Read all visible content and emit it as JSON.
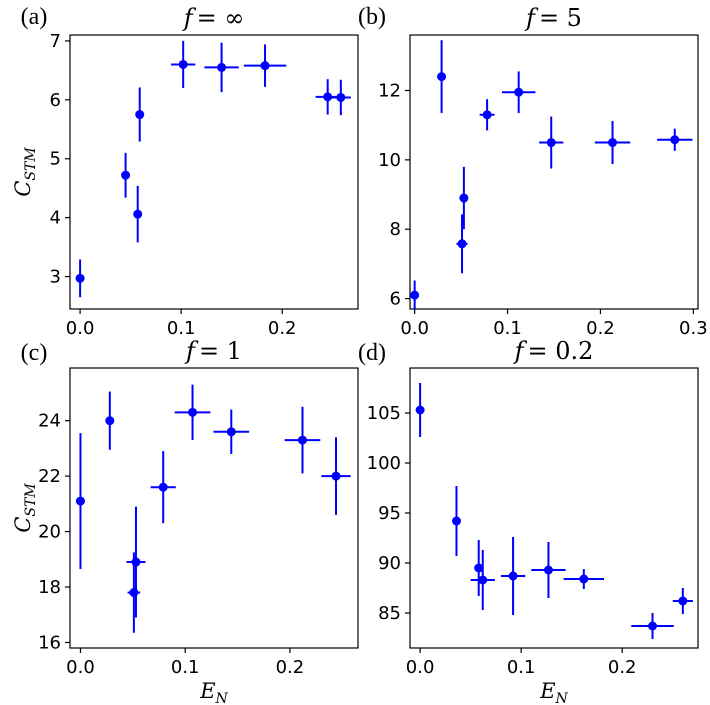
{
  "colors": {
    "marker": "#0000ff",
    "axis": "#000000",
    "background": "#ffffff"
  },
  "chart_data": [
    {
      "type": "scatter",
      "panel_label": "(a)",
      "title_prefix": "f",
      "title_value": "= ∞",
      "ylabel": "C",
      "ylabel_sub": "STM",
      "xlabel": "",
      "xlabel_sub": "",
      "xlim": [
        -0.01,
        0.275
      ],
      "ylim": [
        2.45,
        7.1
      ],
      "xticks": [
        0.0,
        0.1,
        0.2
      ],
      "xtick_labels": [
        "0.0",
        "0.1",
        "0.2"
      ],
      "yticks": [
        3,
        4,
        5,
        6,
        7
      ],
      "ytick_labels": [
        "3",
        "4",
        "5",
        "6",
        "7"
      ],
      "points": [
        {
          "x": 0.0,
          "y": 2.97,
          "xerr": 0.0,
          "yerr": 0.32
        },
        {
          "x": 0.045,
          "y": 4.72,
          "xerr": 0.003,
          "yerr": 0.38
        },
        {
          "x": 0.057,
          "y": 4.06,
          "xerr": 0.003,
          "yerr": 0.48
        },
        {
          "x": 0.059,
          "y": 5.75,
          "xerr": 0.003,
          "yerr": 0.46
        },
        {
          "x": 0.102,
          "y": 6.6,
          "xerr": 0.012,
          "yerr": 0.4
        },
        {
          "x": 0.14,
          "y": 6.55,
          "xerr": 0.017,
          "yerr": 0.42
        },
        {
          "x": 0.183,
          "y": 6.58,
          "xerr": 0.021,
          "yerr": 0.36
        },
        {
          "x": 0.245,
          "y": 6.05,
          "xerr": 0.012,
          "yerr": 0.3
        },
        {
          "x": 0.258,
          "y": 6.04,
          "xerr": 0.01,
          "yerr": 0.3
        }
      ]
    },
    {
      "type": "scatter",
      "panel_label": "(b)",
      "title_prefix": "f",
      "title_value": "= 5",
      "ylabel": "",
      "ylabel_sub": "",
      "xlabel": "",
      "xlabel_sub": "",
      "xlim": [
        -0.005,
        0.305
      ],
      "ylim": [
        5.7,
        13.6
      ],
      "xticks": [
        0.0,
        0.1,
        0.2,
        0.3
      ],
      "xtick_labels": [
        "0.0",
        "0.1",
        "0.2",
        "0.3"
      ],
      "yticks": [
        6,
        8,
        10,
        12
      ],
      "ytick_labels": [
        "6",
        "8",
        "10",
        "12"
      ],
      "points": [
        {
          "x": 0.0,
          "y": 6.1,
          "xerr": 0.0,
          "yerr": 0.42
        },
        {
          "x": 0.029,
          "y": 12.4,
          "xerr": 0.0,
          "yerr": 1.05
        },
        {
          "x": 0.051,
          "y": 7.58,
          "xerr": 0.006,
          "yerr": 0.85
        },
        {
          "x": 0.053,
          "y": 8.9,
          "xerr": 0.004,
          "yerr": 0.9
        },
        {
          "x": 0.078,
          "y": 11.3,
          "xerr": 0.008,
          "yerr": 0.45
        },
        {
          "x": 0.112,
          "y": 11.95,
          "xerr": 0.018,
          "yerr": 0.6
        },
        {
          "x": 0.147,
          "y": 10.5,
          "xerr": 0.013,
          "yerr": 0.75
        },
        {
          "x": 0.213,
          "y": 10.5,
          "xerr": 0.019,
          "yerr": 0.62
        },
        {
          "x": 0.28,
          "y": 10.58,
          "xerr": 0.019,
          "yerr": 0.32
        }
      ]
    },
    {
      "type": "scatter",
      "panel_label": "(c)",
      "title_prefix": "f",
      "title_value": "= 1",
      "ylabel": "C",
      "ylabel_sub": "STM",
      "xlabel": "E",
      "xlabel_sub": "N",
      "xlim": [
        -0.01,
        0.265
      ],
      "ylim": [
        15.8,
        25.9
      ],
      "xticks": [
        0.0,
        0.1,
        0.2
      ],
      "xtick_labels": [
        "0.0",
        "0.1",
        "0.2"
      ],
      "yticks": [
        16,
        18,
        20,
        22,
        24
      ],
      "ytick_labels": [
        "16",
        "18",
        "20",
        "22",
        "24"
      ],
      "points": [
        {
          "x": 0.0,
          "y": 21.1,
          "xerr": 0.0,
          "yerr": 2.45
        },
        {
          "x": 0.028,
          "y": 24.0,
          "xerr": 0.0,
          "yerr": 1.05
        },
        {
          "x": 0.051,
          "y": 17.8,
          "xerr": 0.006,
          "yerr": 1.45
        },
        {
          "x": 0.053,
          "y": 18.9,
          "xerr": 0.009,
          "yerr": 2.0
        },
        {
          "x": 0.079,
          "y": 21.6,
          "xerr": 0.012,
          "yerr": 1.3
        },
        {
          "x": 0.107,
          "y": 24.3,
          "xerr": 0.017,
          "yerr": 1.0
        },
        {
          "x": 0.144,
          "y": 23.6,
          "xerr": 0.017,
          "yerr": 0.8
        },
        {
          "x": 0.212,
          "y": 23.3,
          "xerr": 0.017,
          "yerr": 1.2
        },
        {
          "x": 0.244,
          "y": 22.0,
          "xerr": 0.014,
          "yerr": 1.4
        }
      ]
    },
    {
      "type": "scatter",
      "panel_label": "(d)",
      "title_prefix": "f",
      "title_value": "= 0.2",
      "ylabel": "",
      "ylabel_sub": "",
      "xlabel": "E",
      "xlabel_sub": "N",
      "xlim": [
        -0.01,
        0.275
      ],
      "ylim": [
        81.5,
        109.5
      ],
      "xticks": [
        0.0,
        0.1,
        0.2
      ],
      "xtick_labels": [
        "0.0",
        "0.1",
        "0.2"
      ],
      "yticks": [
        85,
        90,
        95,
        100,
        105
      ],
      "ytick_labels": [
        "85",
        "90",
        "95",
        "100",
        "105"
      ],
      "points": [
        {
          "x": 0.0,
          "y": 105.3,
          "xerr": 0.0,
          "yerr": 2.7
        },
        {
          "x": 0.036,
          "y": 94.2,
          "xerr": 0.0,
          "yerr": 3.5
        },
        {
          "x": 0.058,
          "y": 89.5,
          "xerr": 0.0,
          "yerr": 2.8
        },
        {
          "x": 0.062,
          "y": 88.3,
          "xerr": 0.012,
          "yerr": 3.0
        },
        {
          "x": 0.092,
          "y": 88.7,
          "xerr": 0.012,
          "yerr": 3.9
        },
        {
          "x": 0.127,
          "y": 89.3,
          "xerr": 0.017,
          "yerr": 2.8
        },
        {
          "x": 0.162,
          "y": 88.4,
          "xerr": 0.02,
          "yerr": 1.0
        },
        {
          "x": 0.23,
          "y": 83.7,
          "xerr": 0.021,
          "yerr": 1.3
        },
        {
          "x": 0.26,
          "y": 86.2,
          "xerr": 0.01,
          "yerr": 1.3
        }
      ]
    }
  ]
}
